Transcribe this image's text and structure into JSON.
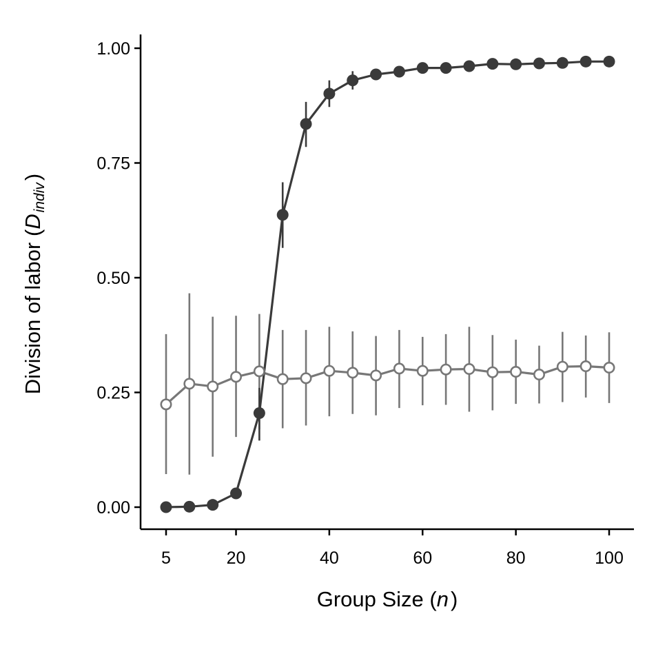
{
  "chart_data": {
    "type": "line",
    "xlabel": {
      "main": "Group Size (",
      "var": "n",
      "close": ")"
    },
    "ylabel": {
      "main": "Division of labor (",
      "var": "D",
      "sub": "indiv",
      "close": ")"
    },
    "xlim": [
      2,
      105
    ],
    "ylim": [
      -0.05,
      1.03
    ],
    "xticks": [
      5,
      20,
      40,
      60,
      80,
      100
    ],
    "yticks": [
      0.0,
      0.25,
      0.5,
      0.75,
      1.0
    ],
    "ytick_labels": [
      "0.00",
      "0.25",
      "0.50",
      "0.75",
      "1.00"
    ],
    "grid": false,
    "legend": "none",
    "x": [
      5,
      10,
      15,
      20,
      25,
      30,
      35,
      40,
      45,
      50,
      55,
      60,
      65,
      70,
      75,
      80,
      85,
      90,
      95,
      100
    ],
    "series": [
      {
        "style": "filled",
        "color": "#3a3a3a",
        "values": [
          0.0,
          0.001,
          0.005,
          0.03,
          0.205,
          0.637,
          0.835,
          0.901,
          0.93,
          0.943,
          0.949,
          0.957,
          0.957,
          0.961,
          0.966,
          0.965,
          0.967,
          0.968,
          0.971,
          0.971
        ],
        "err_low": [
          null,
          null,
          null,
          null,
          0.145,
          0.565,
          0.785,
          0.872,
          0.91,
          null,
          null,
          null,
          null,
          null,
          null,
          null,
          null,
          null,
          null,
          null
        ],
        "err_high": [
          null,
          null,
          null,
          null,
          0.26,
          0.708,
          0.883,
          0.93,
          0.95,
          null,
          null,
          null,
          null,
          null,
          null,
          null,
          null,
          null,
          null,
          null
        ]
      },
      {
        "style": "open",
        "color": "#777777",
        "values": [
          0.224,
          0.269,
          0.263,
          0.284,
          0.296,
          0.279,
          0.281,
          0.297,
          0.293,
          0.287,
          0.302,
          0.297,
          0.3,
          0.301,
          0.294,
          0.295,
          0.289,
          0.306,
          0.307,
          0.304
        ],
        "err_low": [
          0.072,
          0.071,
          0.11,
          0.153,
          0.17,
          0.172,
          0.178,
          0.198,
          0.203,
          0.2,
          0.216,
          0.222,
          0.223,
          0.208,
          0.211,
          0.225,
          0.226,
          0.229,
          0.239,
          0.227
        ],
        "err_high": [
          0.377,
          0.466,
          0.415,
          0.417,
          0.421,
          0.386,
          0.386,
          0.393,
          0.383,
          0.373,
          0.386,
          0.371,
          0.377,
          0.393,
          0.375,
          0.365,
          0.352,
          0.382,
          0.374,
          0.381
        ]
      }
    ]
  }
}
